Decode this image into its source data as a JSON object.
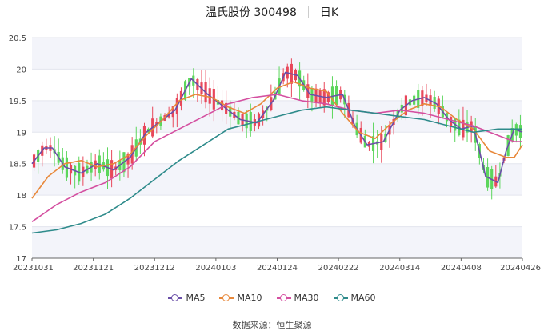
{
  "header": {
    "title": "温氏股份 300498",
    "period": "日K"
  },
  "source": "数据来源：恒生聚源",
  "colors": {
    "up": "#e8475a",
    "down": "#5cd65c",
    "grid_band": "#f3f4fa",
    "MA5": "#6a4fa8",
    "MA10": "#e8883a",
    "MA30": "#d44fa0",
    "MA60": "#2e8b8b"
  },
  "chart_data": {
    "type": "candlestick",
    "title": "温氏股份 300498 日K",
    "ylim": [
      17,
      20.5
    ],
    "yticks": [
      "17",
      "17.5",
      "18",
      "18.5",
      "19",
      "19.5",
      "20",
      "20.5"
    ],
    "xticks": [
      "20231031",
      "20231121",
      "20231212",
      "20240103",
      "20240124",
      "20240222",
      "20240314",
      "20240408",
      "20240426"
    ],
    "n_candles": 120,
    "series": [
      {
        "name": "MA5",
        "points": [
          [
            0,
            18.5
          ],
          [
            3,
            18.75
          ],
          [
            5,
            18.75
          ],
          [
            8,
            18.45
          ],
          [
            12,
            18.35
          ],
          [
            16,
            18.5
          ],
          [
            20,
            18.4
          ],
          [
            24,
            18.6
          ],
          [
            28,
            19.0
          ],
          [
            32,
            19.2
          ],
          [
            35,
            19.35
          ],
          [
            39,
            19.85
          ],
          [
            43,
            19.6
          ],
          [
            47,
            19.4
          ],
          [
            51,
            19.2
          ],
          [
            55,
            19.15
          ],
          [
            59,
            19.5
          ],
          [
            62,
            19.95
          ],
          [
            65,
            19.9
          ],
          [
            68,
            19.6
          ],
          [
            72,
            19.55
          ],
          [
            76,
            19.6
          ],
          [
            79,
            19.1
          ],
          [
            82,
            18.8
          ],
          [
            86,
            18.85
          ],
          [
            90,
            19.35
          ],
          [
            93,
            19.5
          ],
          [
            96,
            19.55
          ],
          [
            99,
            19.45
          ],
          [
            102,
            19.2
          ],
          [
            105,
            19.05
          ],
          [
            108,
            19.1
          ],
          [
            111,
            18.3
          ],
          [
            114,
            18.2
          ],
          [
            116,
            18.7
          ],
          [
            118,
            19.05
          ],
          [
            120,
            19.0
          ]
        ]
      },
      {
        "name": "MA10",
        "points": [
          [
            0,
            17.95
          ],
          [
            4,
            18.3
          ],
          [
            8,
            18.5
          ],
          [
            12,
            18.55
          ],
          [
            16,
            18.45
          ],
          [
            20,
            18.5
          ],
          [
            24,
            18.65
          ],
          [
            28,
            18.95
          ],
          [
            32,
            19.2
          ],
          [
            36,
            19.5
          ],
          [
            40,
            19.6
          ],
          [
            44,
            19.55
          ],
          [
            48,
            19.4
          ],
          [
            52,
            19.3
          ],
          [
            56,
            19.45
          ],
          [
            60,
            19.7
          ],
          [
            64,
            19.8
          ],
          [
            68,
            19.7
          ],
          [
            72,
            19.65
          ],
          [
            76,
            19.3
          ],
          [
            80,
            19.0
          ],
          [
            84,
            18.9
          ],
          [
            88,
            19.15
          ],
          [
            92,
            19.35
          ],
          [
            96,
            19.45
          ],
          [
            100,
            19.4
          ],
          [
            104,
            19.2
          ],
          [
            108,
            19.05
          ],
          [
            112,
            18.7
          ],
          [
            116,
            18.6
          ],
          [
            118,
            18.6
          ],
          [
            120,
            18.8
          ]
        ]
      },
      {
        "name": "MA30",
        "points": [
          [
            0,
            17.58
          ],
          [
            6,
            17.85
          ],
          [
            12,
            18.05
          ],
          [
            18,
            18.2
          ],
          [
            24,
            18.45
          ],
          [
            30,
            18.85
          ],
          [
            36,
            19.05
          ],
          [
            42,
            19.25
          ],
          [
            48,
            19.45
          ],
          [
            54,
            19.55
          ],
          [
            60,
            19.6
          ],
          [
            66,
            19.5
          ],
          [
            72,
            19.45
          ],
          [
            78,
            19.35
          ],
          [
            84,
            19.3
          ],
          [
            90,
            19.35
          ],
          [
            96,
            19.3
          ],
          [
            102,
            19.2
          ],
          [
            108,
            19.1
          ],
          [
            114,
            18.95
          ],
          [
            118,
            18.85
          ],
          [
            120,
            18.85
          ]
        ]
      },
      {
        "name": "MA60",
        "points": [
          [
            0,
            17.4
          ],
          [
            6,
            17.45
          ],
          [
            12,
            17.55
          ],
          [
            18,
            17.7
          ],
          [
            24,
            17.95
          ],
          [
            30,
            18.25
          ],
          [
            36,
            18.55
          ],
          [
            42,
            18.8
          ],
          [
            48,
            19.05
          ],
          [
            54,
            19.15
          ],
          [
            60,
            19.25
          ],
          [
            66,
            19.35
          ],
          [
            72,
            19.4
          ],
          [
            78,
            19.35
          ],
          [
            84,
            19.3
          ],
          [
            90,
            19.25
          ],
          [
            96,
            19.2
          ],
          [
            102,
            19.1
          ],
          [
            108,
            19.0
          ],
          [
            114,
            19.05
          ],
          [
            120,
            19.05
          ]
        ]
      }
    ]
  },
  "legend": [
    {
      "label": "MA5",
      "color": "#6a4fa8"
    },
    {
      "label": "MA10",
      "color": "#e8883a"
    },
    {
      "label": "MA30",
      "color": "#d44fa0"
    },
    {
      "label": "MA60",
      "color": "#2e8b8b"
    }
  ]
}
